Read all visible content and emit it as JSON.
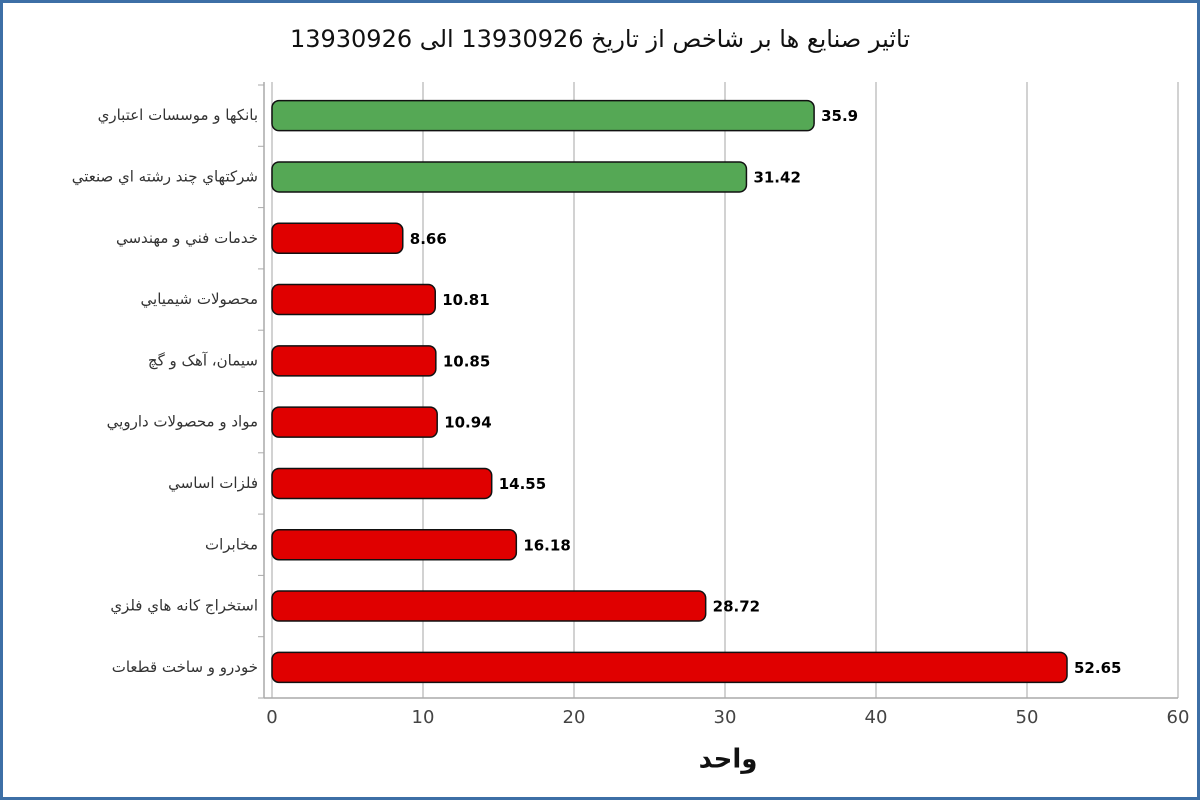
{
  "chart_data": {
    "type": "hbar",
    "title": "تاثیر صنایع ها بر شاخص از تاریخ 13930926 الی 13930926",
    "x_label": "واحد",
    "categories": [
      "بانکها و موسسات اعتباري",
      "شرکتهاي چند رشته اي صنعتي",
      "خدمات فني و مهندسي",
      "محصولات شيميايي",
      "سيمان، آهک و گچ",
      "مواد و محصولات دارويي",
      "فلزات اساسي",
      "مخابرات",
      "استخراج کانه هاي فلزي",
      "خودرو و ساخت قطعات"
    ],
    "values": [
      35.9,
      31.42,
      8.66,
      10.81,
      10.85,
      10.94,
      14.55,
      16.18,
      28.72,
      52.65
    ],
    "colors": [
      "#55a855",
      "#55a855",
      "#e00000",
      "#e00000",
      "#e00000",
      "#e00000",
      "#e00000",
      "#e00000",
      "#e00000",
      "#e00000"
    ],
    "xlim": [
      0,
      60
    ],
    "xticks": [
      0,
      10,
      20,
      30,
      40,
      50,
      60
    ],
    "grid": true
  }
}
